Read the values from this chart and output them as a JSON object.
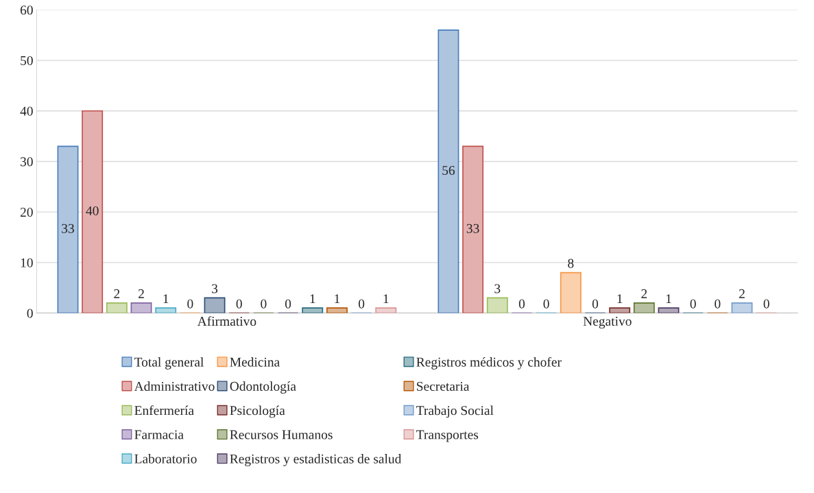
{
  "chart_data": {
    "type": "bar",
    "categories": [
      "Afirmativo",
      "Negativo"
    ],
    "ylim": [
      0,
      60
    ],
    "yticks": [
      0,
      10,
      20,
      30,
      40,
      50,
      60
    ],
    "grid": "y",
    "legend": "bottom",
    "data_labels": true,
    "series": [
      {
        "name": "Total general",
        "color": "#4a7ebb",
        "values": [
          33,
          56
        ]
      },
      {
        "name": "Administrativo",
        "color": "#c0504d",
        "values": [
          40,
          33
        ]
      },
      {
        "name": "Enfermería",
        "color": "#9bbb59",
        "values": [
          2,
          3
        ]
      },
      {
        "name": "Farmacia",
        "color": "#8064a2",
        "values": [
          2,
          0
        ]
      },
      {
        "name": "Laboratorio",
        "color": "#4bacc6",
        "values": [
          1,
          0
        ]
      },
      {
        "name": "Medicina",
        "color": "#f79646",
        "values": [
          0,
          8
        ]
      },
      {
        "name": "Odontología",
        "color": "#2c4d75",
        "values": [
          3,
          0
        ]
      },
      {
        "name": "Psicología",
        "color": "#772c2a",
        "values": [
          0,
          1
        ]
      },
      {
        "name": "Recursos Humanos",
        "color": "#5f7530",
        "values": [
          0,
          2
        ]
      },
      {
        "name": "Registros y estadisticas de salud",
        "color": "#4d3b62",
        "values": [
          0,
          1
        ]
      },
      {
        "name": "Registros médicos y chofer",
        "color": "#276a7c",
        "values": [
          1,
          0
        ]
      },
      {
        "name": "Secretaria",
        "color": "#b65708",
        "values": [
          1,
          0
        ]
      },
      {
        "name": "Trabajo Social",
        "color": "#729aca",
        "values": [
          0,
          2
        ]
      },
      {
        "name": "Transportes",
        "color": "#d99694",
        "values": [
          1,
          0
        ]
      }
    ]
  }
}
